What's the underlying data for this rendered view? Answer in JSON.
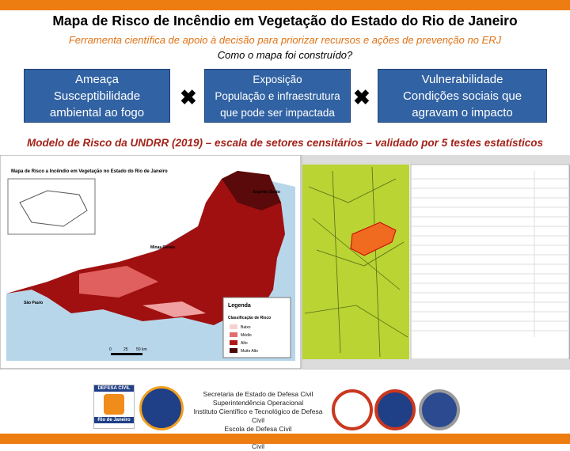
{
  "header": {
    "title": "Mapa de Risco de Incêndio em Vegetação do Estado do Rio de Janeiro",
    "subtitle": "Ferramenta científica de apoio à decisão para priorizar recursos e ações de prevenção no ERJ",
    "question": "Como o mapa foi construído?"
  },
  "boxes": [
    {
      "lines": [
        "Ameaça",
        "Susceptibilidade",
        "ambiental ao fogo"
      ]
    },
    {
      "lines": [
        "Exposição",
        "População e infraestrutura",
        "que pode ser impactada"
      ]
    },
    {
      "lines": [
        "Vulnerabilidade",
        "Condições sociais que",
        "agravam o impacto"
      ]
    }
  ],
  "method": "Modelo de Risco da UNDRR (2019) – escala de setores censitários – validado por 5 testes estatísticos",
  "map": {
    "title": "Mapa de Risco a Incêndio em Vegetação no Estado do Rio de Janeiro",
    "places": [
      "Espírito Santo",
      "Minas Gerais",
      "São Paulo"
    ],
    "legend_title": "Legenda",
    "legend_subtitle": "Classificação de Risco",
    "legend_items": [
      "Baixo",
      "Médio",
      "Alto",
      "Muito Alto"
    ],
    "scale": [
      "0",
      "25",
      "50 km"
    ]
  },
  "footer": {
    "logo_top": "DEFESA CIVIL",
    "logo_bottom": "Rio de Janeiro",
    "lines": [
      "Secretaria de Estado de Defesa Civil",
      "Superintendência Operacional",
      "Instituto Científico e Tecnológico de Defesa Civil",
      "Escola de Defesa Civil",
      "Centro de Estudos e Pesquisas em Defesa Civil"
    ]
  }
}
